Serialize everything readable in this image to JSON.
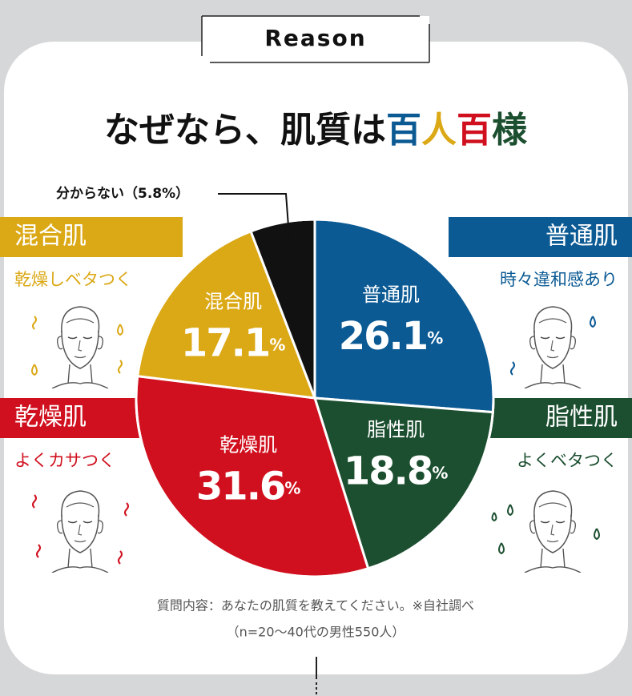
{
  "header": "Reason",
  "title_parts": [
    {
      "text": "なぜなら、肌質は",
      "color": "#111111"
    },
    {
      "text": "百",
      "color": "#0b5a94"
    },
    {
      "text": "人",
      "color": "#dba816"
    },
    {
      "text": "百",
      "color": "#d0101e"
    },
    {
      "text": "様",
      "color": "#1c4f30"
    }
  ],
  "panels": [
    {
      "label": "混合肌",
      "description": "乾燥しベタつく",
      "color": "#dba816"
    },
    {
      "label": "普通肌",
      "description": "時々違和感あり",
      "color": "#0b5a94"
    },
    {
      "label": "乾燥肌",
      "description": "よくカサつく",
      "color": "#d0101e"
    },
    {
      "label": "脂性肌",
      "description": "よくベタつく",
      "color": "#1c4f30"
    }
  ],
  "chart_data": {
    "type": "pie",
    "categories": [
      "普通肌",
      "脂性肌",
      "乾燥肌",
      "混合肌",
      "分からない"
    ],
    "values": [
      26.1,
      18.8,
      31.6,
      17.1,
      5.8
    ],
    "value_labels": [
      "26.1%",
      "18.8%",
      "31.6%",
      "17.1%",
      "（5.8%）"
    ],
    "colors": [
      "#0b5a94",
      "#1c4f30",
      "#d0101e",
      "#dba816",
      "#111111"
    ]
  },
  "footnote": [
    "質問内容：あなたの肌質を教えてください。※自社調べ",
    "（n=20〜40代の男性550人）"
  ]
}
